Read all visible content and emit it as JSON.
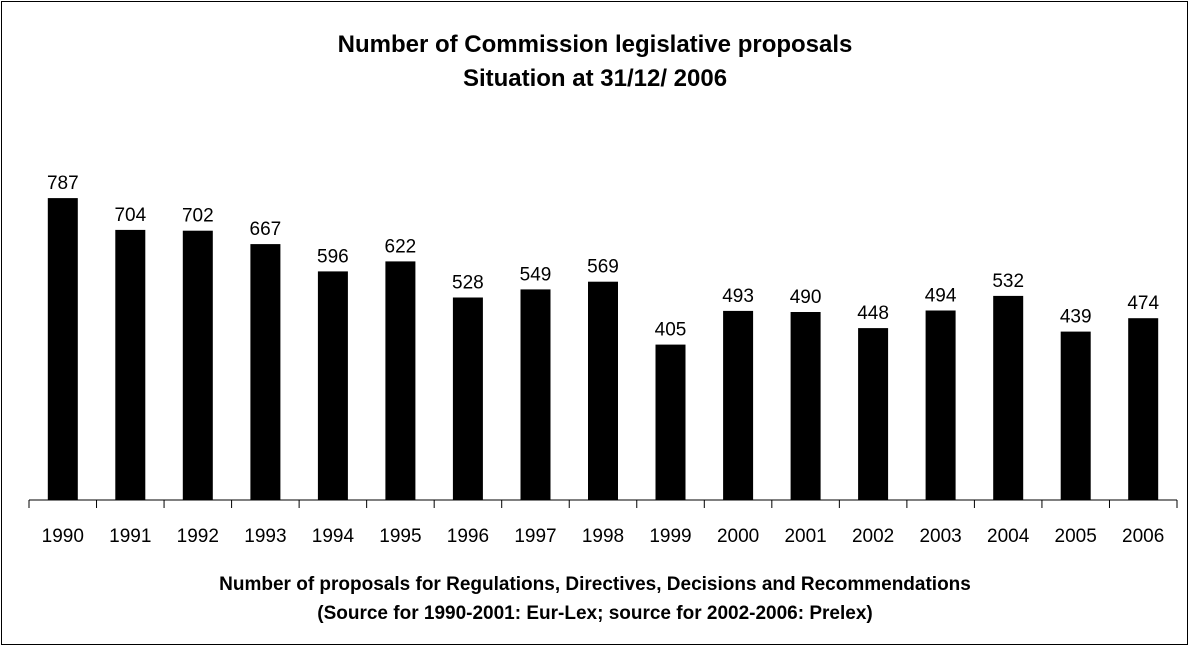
{
  "chart_data": {
    "type": "bar",
    "title": "Number of Commission legislative proposals",
    "subtitle": "Situation at 31/12/ 2006",
    "xlabel": "Number of proposals for Regulations, Directives, Decisions and Recommendations",
    "xlabel_note": "(Source for 1990-2001: Eur-Lex; source for 2002-2006: Prelex)",
    "ylabel": "",
    "categories": [
      "1990",
      "1991",
      "1992",
      "1993",
      "1994",
      "1995",
      "1996",
      "1997",
      "1998",
      "1999",
      "2000",
      "2001",
      "2002",
      "2003",
      "2004",
      "2005",
      "2006"
    ],
    "values": [
      787,
      704,
      702,
      667,
      596,
      622,
      528,
      549,
      569,
      405,
      493,
      490,
      448,
      494,
      532,
      439,
      474
    ],
    "ylim": [
      0,
      800
    ],
    "grid": false,
    "legend": "none",
    "bar_color": "#000000"
  }
}
